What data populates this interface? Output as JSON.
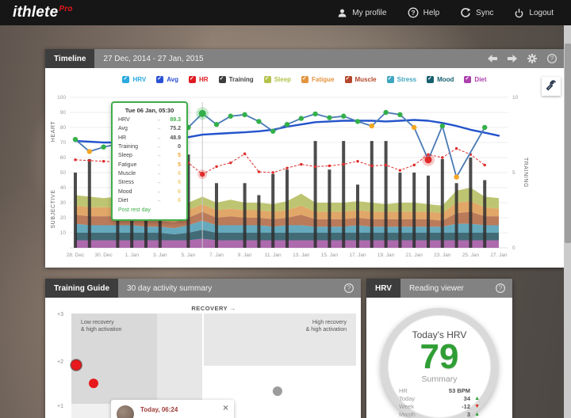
{
  "header": {
    "logo": {
      "name": "ithlete",
      "suffix": "Pro"
    },
    "menu": [
      {
        "label": "My profile",
        "icon": "user-icon"
      },
      {
        "label": "Help",
        "icon": "help-icon"
      },
      {
        "label": "Sync",
        "icon": "sync-icon"
      },
      {
        "label": "Logout",
        "icon": "power-icon"
      }
    ]
  },
  "timeline_panel": {
    "tab": "Timeline",
    "date_range": "27 Dec, 2014 - 27 Jan, 2015",
    "left_axis_labels": [
      "HEART",
      "SUBJECTIVE"
    ],
    "right_axis_label": "TRAINING",
    "legend": [
      {
        "label": "HRV",
        "color": "#29a9e0"
      },
      {
        "label": "Avg",
        "color": "#2b50d4"
      },
      {
        "label": "HR",
        "color": "#e01b22"
      },
      {
        "label": "Training",
        "color": "#3d3d3d",
        "text_color": "#444444"
      },
      {
        "label": "Sleep",
        "color": "#b4c24b"
      },
      {
        "label": "Fatigue",
        "color": "#e39440"
      },
      {
        "label": "Muscle",
        "color": "#b4472c"
      },
      {
        "label": "Stress",
        "color": "#3fa6c0"
      },
      {
        "label": "Mood",
        "color": "#15606e"
      },
      {
        "label": "Diet",
        "color": "#ad3fad"
      }
    ],
    "tooltip": {
      "title": "Tue 06 Jan, 05:30",
      "arrow_glyph": "→",
      "border_color": "#3fae49",
      "rows": [
        {
          "label": "HRV",
          "value": "89.3",
          "color": "#3fae49"
        },
        {
          "label": "Avg",
          "value": "75.2",
          "color": "#555555"
        },
        {
          "label": "HR",
          "value": "48.9",
          "color": "#555555"
        },
        {
          "label": "Training",
          "value": "0",
          "color": "#555555"
        },
        {
          "label": "Sleep",
          "value": "5",
          "color": "#f0a330"
        },
        {
          "label": "Fatigue",
          "value": "5",
          "color": "#f0a330"
        },
        {
          "label": "Muscle",
          "value": "6",
          "color": "#f2cf79"
        },
        {
          "label": "Stress",
          "value": "6",
          "color": "#f2cf79"
        },
        {
          "label": "Mood",
          "value": "6",
          "color": "#f2cf79"
        },
        {
          "label": "Diet",
          "value": "6",
          "color": "#f2cf79"
        }
      ],
      "footer": "Post rest day"
    }
  },
  "training_panel": {
    "tab": "Training Guide",
    "subtitle": "30 day activity summary",
    "popup": {
      "title": "Today, 06:24",
      "close_glyph": "×"
    }
  },
  "hrv_panel": {
    "tab": "HRV",
    "subtitle": "Reading viewer",
    "gauge": {
      "title": "Today's HRV",
      "value": "79",
      "value_color": "#2f9e35",
      "summary_label": "Summary",
      "rows": [
        {
          "label": "HR",
          "value": "53 BPM",
          "glyph": "",
          "glyph_color": ""
        },
        {
          "label": "Today",
          "value": "34",
          "glyph": "▲",
          "glyph_color": "#2f9e35"
        },
        {
          "label": "Week",
          "value": "-12",
          "glyph": "▼",
          "glyph_color": "#d62f1a"
        },
        {
          "label": "Month",
          "value": "3",
          "glyph": "▲",
          "glyph_color": "#2f9e35"
        }
      ]
    }
  },
  "chart_data": [
    {
      "id": "timeline",
      "type": "mixed",
      "x_dates": [
        "28 Dec",
        "29 Dec",
        "30 Dec",
        "31 Dec",
        "1 Jan",
        "2 Jan",
        "3 Jan",
        "4 Jan",
        "5 Jan",
        "6 Jan",
        "7 Jan",
        "8 Jan",
        "9 Jan",
        "10 Jan",
        "11 Jan",
        "12 Jan",
        "13 Jan",
        "14 Jan",
        "15 Jan",
        "16 Jan",
        "17 Jan",
        "18 Jan",
        "19 Jan",
        "20 Jan",
        "21 Jan",
        "22 Jan",
        "23 Jan",
        "24 Jan",
        "25 Jan",
        "26 Jan",
        "27 Jan"
      ],
      "x_tick_labels": [
        "28. Dec",
        "30. Dec",
        "1. Jan",
        "3. Jan",
        "5. Jan",
        "7. Jan",
        "9. Jan",
        "11. Jan",
        "13. Jan",
        "15. Jan",
        "17. Jan",
        "19. Jan",
        "21. Jan",
        "23. Jan",
        "25. Jan",
        "27. Jan"
      ],
      "left_axis": {
        "min": 0,
        "max": 100,
        "ticks": [
          10,
          20,
          30,
          40,
          50,
          60,
          70,
          80,
          90,
          100
        ]
      },
      "right_axis": {
        "min": 0,
        "max": 10,
        "ticks": [
          0,
          5,
          10
        ]
      },
      "selected_index": 9,
      "alert_index": 25,
      "series": [
        {
          "name": "HRV",
          "type": "line",
          "color": "#4a7ab5",
          "values": [
            72,
            64,
            67,
            69,
            72,
            75,
            77,
            78,
            80,
            89.3,
            82,
            87.5,
            88.5,
            84,
            77.5,
            82,
            86,
            89,
            86.5,
            87.5,
            84,
            81,
            90,
            88.5,
            80,
            58.5,
            81,
            47,
            null,
            80,
            null
          ],
          "dot_colors": [
            "g",
            "o",
            "g",
            null,
            null,
            null,
            null,
            null,
            "g",
            "g",
            "g",
            "g",
            "g",
            "g",
            "g",
            "g",
            "g",
            "g",
            "g",
            "g",
            "g",
            "o",
            "g",
            "g",
            "o",
            "r",
            "g",
            "o",
            null,
            "g",
            null
          ]
        },
        {
          "name": "Avg",
          "type": "line",
          "color": "#2353cc",
          "values": [
            71,
            70.5,
            70,
            70,
            70.5,
            71,
            71.5,
            72,
            73.5,
            75.2,
            75.8,
            76.3,
            76.8,
            77.5,
            78.5,
            80.5,
            82,
            83.5,
            84,
            84.5,
            84.5,
            84.5,
            84,
            84.5,
            85,
            84.5,
            83,
            81,
            78.5,
            76.5,
            74.5
          ]
        },
        {
          "name": "HR",
          "type": "line",
          "dashed": true,
          "color": "#e02b2b",
          "values": [
            58.5,
            58,
            57.5,
            57,
            56,
            56,
            56.5,
            57,
            56.5,
            48.9,
            54,
            56.5,
            62.5,
            50.5,
            50,
            53,
            55.5,
            54,
            54.5,
            55.5,
            57.5,
            54.5,
            55,
            51.5,
            55,
            62,
            60,
            66,
            62,
            55,
            null
          ]
        },
        {
          "name": "Training",
          "type": "bar",
          "axis": "right",
          "color": "#2e2e2e",
          "values": [
            5,
            5.9,
            0,
            7,
            7,
            6.5,
            6.5,
            0,
            6.2,
            0,
            4.3,
            0,
            4.3,
            3.5,
            4.9,
            5.2,
            0,
            7.1,
            5.2,
            7.1,
            4.2,
            7.1,
            7.1,
            5,
            5,
            4.8,
            5.9,
            4.3,
            6,
            4.5,
            0
          ]
        },
        {
          "name": "Sleep",
          "type": "area",
          "color": "#b9c167",
          "values": [
            7,
            7,
            6,
            7,
            5,
            5,
            4,
            4,
            5,
            5,
            5,
            6,
            5,
            5,
            5,
            6,
            8,
            6,
            6,
            6,
            6,
            6,
            5,
            6,
            6,
            5,
            5,
            8,
            9,
            7,
            7
          ]
        },
        {
          "name": "Fatigue",
          "type": "area",
          "color": "#dfa05c",
          "values": [
            6,
            6,
            6,
            6,
            5,
            4,
            4,
            4,
            5,
            5,
            5,
            5,
            5,
            5,
            5,
            5,
            6,
            5,
            5,
            5,
            5,
            5,
            5,
            5,
            5,
            5,
            5,
            7,
            7,
            6,
            5
          ]
        },
        {
          "name": "Muscle",
          "type": "area",
          "color": "#b5714f",
          "values": [
            6,
            6,
            6,
            6,
            5,
            5,
            4,
            4,
            5,
            6,
            5,
            6,
            5,
            5,
            5,
            5,
            7,
            5,
            5,
            5,
            5,
            5,
            5,
            5,
            5,
            5,
            4,
            7,
            8,
            6,
            6
          ]
        },
        {
          "name": "Stress",
          "type": "area",
          "color": "#5aa3b8",
          "values": [
            6,
            5,
            5,
            5,
            5,
            4,
            4,
            4,
            5,
            6,
            5,
            5,
            5,
            5,
            4,
            5,
            5,
            4,
            4,
            4,
            5,
            4,
            4,
            4,
            4,
            4,
            4,
            6,
            6,
            5,
            5
          ]
        },
        {
          "name": "Mood",
          "type": "area",
          "color": "#34606c",
          "values": [
            5,
            5,
            5,
            5,
            5,
            5,
            5,
            4,
            5,
            6,
            5,
            5,
            5,
            5,
            5,
            5,
            5,
            5,
            5,
            5,
            5,
            5,
            5,
            5,
            5,
            5,
            5,
            5,
            5,
            5,
            5
          ]
        },
        {
          "name": "Diet",
          "type": "area",
          "color": "#a75fa7",
          "values": [
            5,
            5,
            5,
            5,
            5,
            5,
            5,
            5,
            5,
            6,
            5,
            5,
            5,
            5,
            5,
            5,
            5,
            5,
            5,
            5,
            5,
            5,
            5,
            5,
            5,
            5,
            5,
            5,
            5,
            5,
            5
          ]
        }
      ]
    },
    {
      "id": "training_guide",
      "type": "scatter",
      "title": "RECOVERY →",
      "y_tick_labels": [
        "+3",
        "+2",
        "+1"
      ],
      "labels": {
        "tl1": "Low recovery",
        "tl2": "& high activation",
        "tr1": "High recovery",
        "tr2": "& high activation"
      },
      "points": [
        {
          "x_frac": 0.017,
          "activation": 1.93,
          "r": 7,
          "color": "#e8191c",
          "ring": true
        },
        {
          "x_frac": 0.078,
          "activation": 1.53,
          "r": 6,
          "color": "#e8191c",
          "ring": false
        },
        {
          "x_frac": 0.724,
          "activation": 1.36,
          "r": 6,
          "color": "#9c9c9c",
          "ring": false
        }
      ]
    }
  ]
}
